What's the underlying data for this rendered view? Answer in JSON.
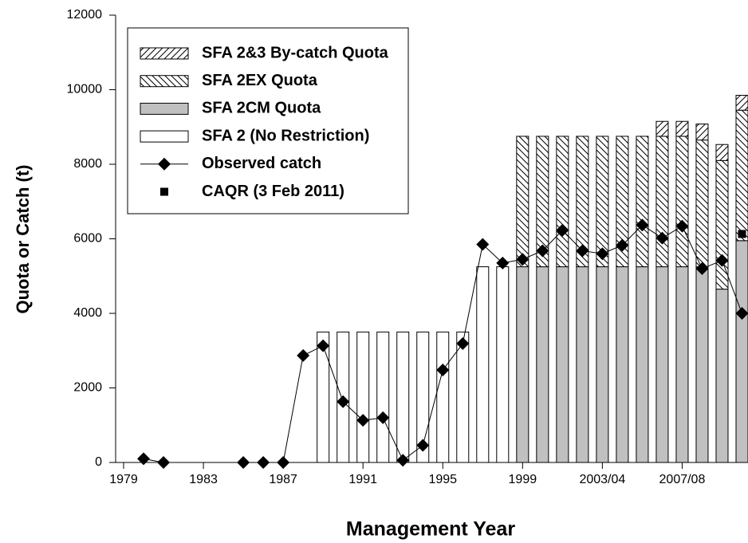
{
  "chart_data": {
    "type": "bar",
    "x_label": "Management Year",
    "y_label": "Quota or Catch (t)",
    "x": [
      1979,
      1980,
      1981,
      1982,
      1983,
      1984,
      1985,
      1986,
      1987,
      1988,
      1989,
      1990,
      1991,
      1992,
      1993,
      1994,
      1995,
      1996,
      1997,
      1998,
      1999,
      2000,
      2001,
      2002,
      2003,
      2004,
      2005,
      2006,
      2007,
      2008,
      2009,
      2010
    ],
    "xlim": [
      1978.6,
      2010.3
    ],
    "xticks": [
      1979,
      1983,
      1987,
      1991,
      1995,
      1999,
      {
        "value": 2003,
        "label": "2003/04"
      },
      {
        "value": 2007,
        "label": "2007/08"
      }
    ],
    "ylim": [
      0,
      12000
    ],
    "yticks": [
      0,
      2000,
      4000,
      6000,
      8000,
      10000,
      12000
    ],
    "series": [
      {
        "name": "SFA 2&3 By-catch Quota",
        "type": "bar",
        "color": "#000000",
        "hatch": "forward",
        "values": [
          null,
          null,
          null,
          null,
          null,
          null,
          null,
          null,
          null,
          null,
          null,
          null,
          null,
          null,
          null,
          null,
          null,
          null,
          null,
          null,
          0,
          0,
          0,
          0,
          0,
          0,
          0,
          400,
          400,
          430,
          430,
          400
        ]
      },
      {
        "name": "SFA 2EX Quota",
        "type": "bar",
        "color": "#000000",
        "hatch": "backward",
        "values": [
          null,
          null,
          null,
          null,
          null,
          null,
          null,
          null,
          null,
          null,
          null,
          null,
          null,
          null,
          null,
          null,
          null,
          null,
          null,
          null,
          3500,
          3500,
          3500,
          3500,
          3500,
          3500,
          3500,
          3500,
          3500,
          3400,
          3450,
          3500
        ]
      },
      {
        "name": "SFA 2CM Quota",
        "type": "bar",
        "color": "#c0c0c0",
        "values": [
          null,
          null,
          null,
          null,
          null,
          null,
          null,
          null,
          null,
          null,
          null,
          null,
          null,
          null,
          null,
          null,
          null,
          null,
          null,
          null,
          5250,
          5250,
          5250,
          5250,
          5250,
          5250,
          5250,
          5250,
          5250,
          5250,
          4650,
          5950
        ]
      },
      {
        "name": "SFA 2 (No Restriction)",
        "type": "bar",
        "color": "#ffffff",
        "values": [
          null,
          null,
          null,
          null,
          null,
          null,
          null,
          null,
          null,
          null,
          3500,
          3500,
          3500,
          3500,
          3500,
          3500,
          3500,
          3500,
          5250,
          5250,
          null,
          null,
          null,
          null,
          null,
          null,
          null,
          null,
          null,
          null,
          null,
          null
        ]
      },
      {
        "name": "Observed catch",
        "type": "line",
        "color": "#000000",
        "values": [
          null,
          100,
          0,
          null,
          null,
          null,
          0,
          0,
          0,
          2870,
          3130,
          1630,
          1130,
          1200,
          60,
          460,
          2480,
          3190,
          5850,
          5350,
          5450,
          5680,
          6230,
          5680,
          5600,
          5830,
          6370,
          6020,
          6340,
          5200,
          5420,
          4000
        ]
      },
      {
        "name": "CAQR (3 Feb 2011)",
        "type": "scatter",
        "color": "#000000",
        "values": [
          null,
          null,
          null,
          null,
          null,
          null,
          null,
          null,
          null,
          null,
          null,
          null,
          null,
          null,
          null,
          null,
          null,
          null,
          null,
          null,
          null,
          null,
          null,
          null,
          null,
          null,
          null,
          null,
          null,
          null,
          null,
          6130
        ]
      }
    ]
  }
}
